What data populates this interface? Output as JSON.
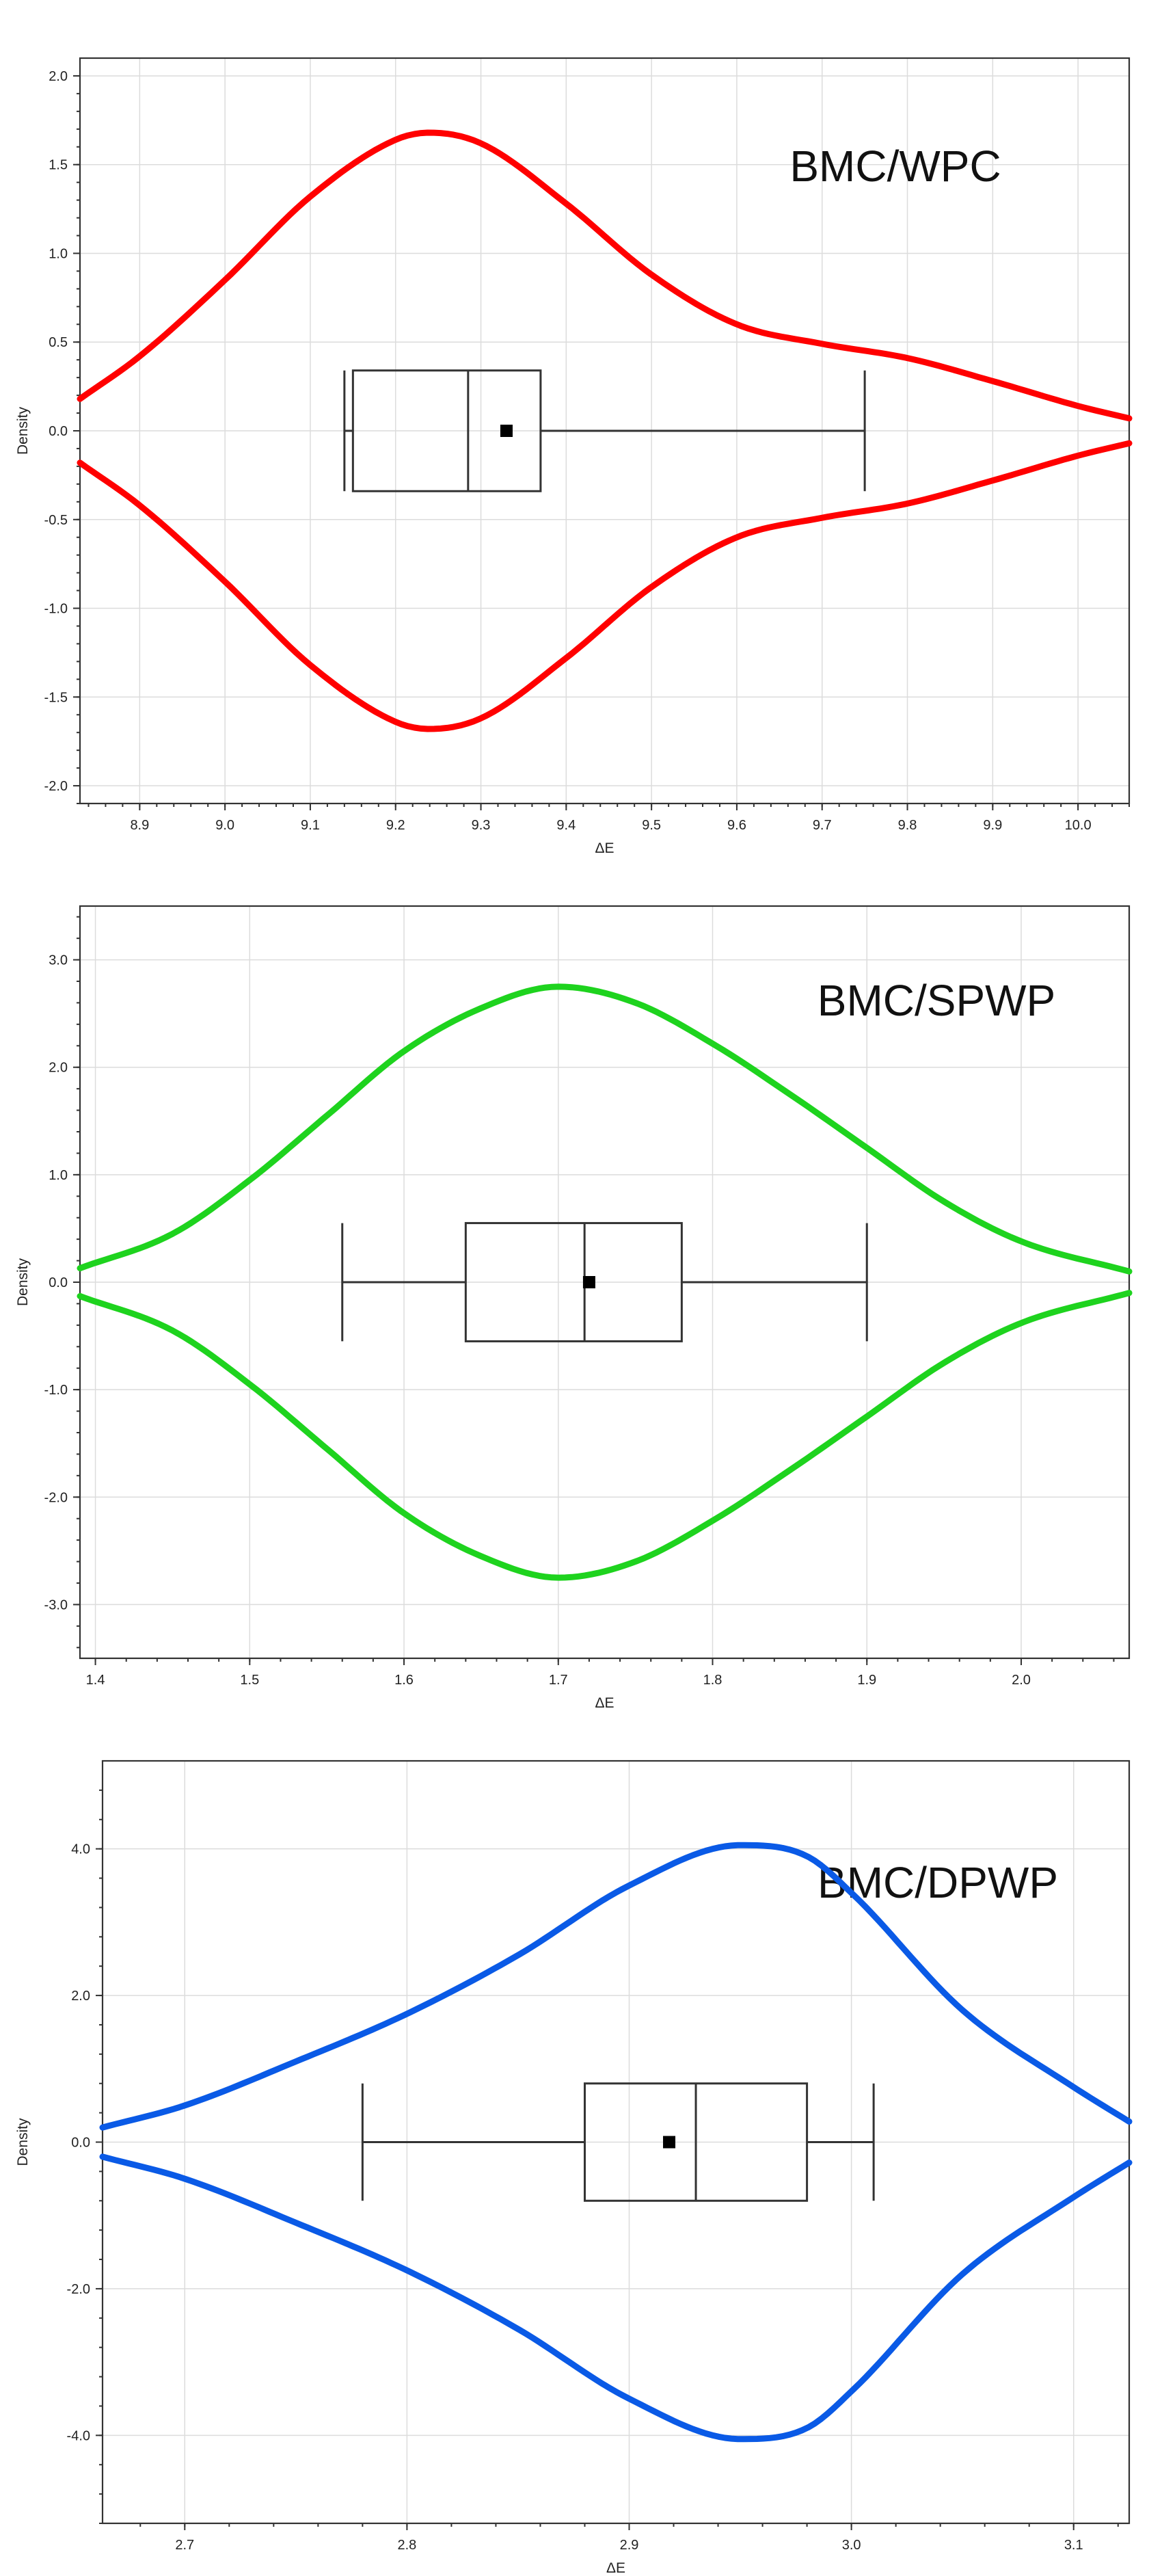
{
  "colors": {
    "violin_1": "#ff0000",
    "violin_2": "#1ed31e",
    "violin_3": "#0a5ae6"
  },
  "chart_data": [
    {
      "type": "violin",
      "title": "BMC/WPC",
      "xlabel": "ΔE",
      "ylabel": "Density",
      "xlim": [
        8.83,
        10.06
      ],
      "ylim": [
        -2.1,
        2.1
      ],
      "xticks": [
        8.9,
        9.0,
        9.1,
        9.2,
        9.3,
        9.4,
        9.5,
        9.6,
        9.7,
        9.8,
        9.9,
        10.0
      ],
      "xtick_labels": [
        "8.9",
        "9.0",
        "9.1",
        "9.2",
        "9.3",
        "9.4",
        "9.5",
        "9.6",
        "9.7",
        "9.8",
        "9.9",
        "10.0"
      ],
      "yticks": [
        -2.0,
        -1.5,
        -1.0,
        -0.5,
        0.0,
        0.5,
        1.0,
        1.5,
        2.0
      ],
      "ytick_labels": [
        "-2.0",
        "-1.5",
        "-1.0",
        "-0.5",
        "0.0",
        "0.5",
        "1.0",
        "1.5",
        "2.0"
      ],
      "grid": true,
      "color": "#ff0000",
      "density": {
        "x": [
          8.83,
          8.9,
          9.0,
          9.1,
          9.2,
          9.24,
          9.3,
          9.4,
          9.5,
          9.6,
          9.7,
          9.8,
          9.9,
          10.0,
          10.06
        ],
        "y": [
          0.18,
          0.42,
          0.85,
          1.32,
          1.64,
          1.68,
          1.62,
          1.28,
          0.88,
          0.6,
          0.49,
          0.41,
          0.28,
          0.14,
          0.07
        ]
      },
      "box": {
        "whisker_low": 9.14,
        "q1": 9.15,
        "median": 9.285,
        "q3": 9.37,
        "whisker_high": 9.75,
        "mean": 9.33,
        "half_height": 0.34,
        "cap_half": 0.34
      }
    },
    {
      "type": "violin",
      "title": "BMC/SPWP",
      "xlabel": "ΔE",
      "ylabel": "Density",
      "xlim": [
        1.39,
        2.07
      ],
      "ylim": [
        -3.5,
        3.5
      ],
      "xticks": [
        1.4,
        1.5,
        1.6,
        1.7,
        1.8,
        1.9,
        2.0
      ],
      "xtick_labels": [
        "1.4",
        "1.5",
        "1.6",
        "1.7",
        "1.8",
        "1.9",
        "2.0"
      ],
      "yticks": [
        -3.0,
        -2.0,
        -1.0,
        0.0,
        1.0,
        2.0,
        3.0
      ],
      "ytick_labels": [
        "-3.0",
        "-2.0",
        "-1.0",
        "0.0",
        "1.0",
        "2.0",
        "3.0"
      ],
      "grid": true,
      "color": "#1ed31e",
      "density": {
        "x": [
          1.39,
          1.45,
          1.5,
          1.55,
          1.6,
          1.65,
          1.7,
          1.75,
          1.8,
          1.85,
          1.9,
          1.95,
          2.0,
          2.07
        ],
        "y": [
          0.13,
          0.45,
          0.95,
          1.55,
          2.15,
          2.55,
          2.75,
          2.6,
          2.22,
          1.75,
          1.25,
          0.75,
          0.38,
          0.1
        ]
      },
      "box": {
        "whisker_low": 1.56,
        "q1": 1.64,
        "median": 1.717,
        "q3": 1.78,
        "whisker_high": 1.9,
        "mean": 1.72,
        "half_height": 0.55,
        "cap_half": 0.55
      }
    },
    {
      "type": "violin",
      "title": "BMC/DPWP",
      "xlabel": "ΔE",
      "ylabel": "Density",
      "xlim": [
        2.663,
        3.125
      ],
      "ylim": [
        -5.2,
        5.2
      ],
      "xticks": [
        2.7,
        2.8,
        2.9,
        3.0,
        3.1
      ],
      "xtick_labels": [
        "2.7",
        "2.8",
        "2.9",
        "3.0",
        "3.1"
      ],
      "yticks": [
        -4.0,
        -2.0,
        0.0,
        2.0,
        4.0
      ],
      "ytick_labels": [
        "-4.0",
        "-2.0",
        "0.0",
        "2.0",
        "4.0"
      ],
      "grid": true,
      "color": "#0a5ae6",
      "density": {
        "x": [
          2.663,
          2.7,
          2.75,
          2.8,
          2.85,
          2.9,
          2.95,
          2.98,
          3.0,
          3.05,
          3.1,
          3.125
        ],
        "y": [
          0.2,
          0.5,
          1.1,
          1.75,
          2.55,
          3.5,
          4.05,
          3.9,
          3.4,
          1.8,
          0.75,
          0.28
        ]
      },
      "box": {
        "whisker_low": 2.78,
        "q1": 2.88,
        "median": 2.93,
        "q3": 2.98,
        "whisker_high": 3.01,
        "mean": 2.918,
        "half_height": 0.8,
        "cap_half": 0.8
      }
    }
  ]
}
